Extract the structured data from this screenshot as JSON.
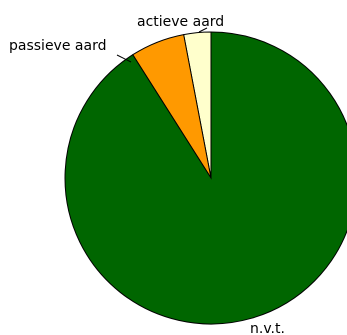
{
  "chart_data": {
    "type": "pie",
    "slices": [
      {
        "label": "actieve aard",
        "value": 3,
        "color": "#FFFFCC"
      },
      {
        "label": "passieve aard",
        "value": 6,
        "color": "#FF9900"
      },
      {
        "label": "n.v.t.",
        "value": 91,
        "color": "#006600"
      }
    ],
    "start": "top",
    "direction": "counterclockwise",
    "legend": "none",
    "title": ""
  }
}
